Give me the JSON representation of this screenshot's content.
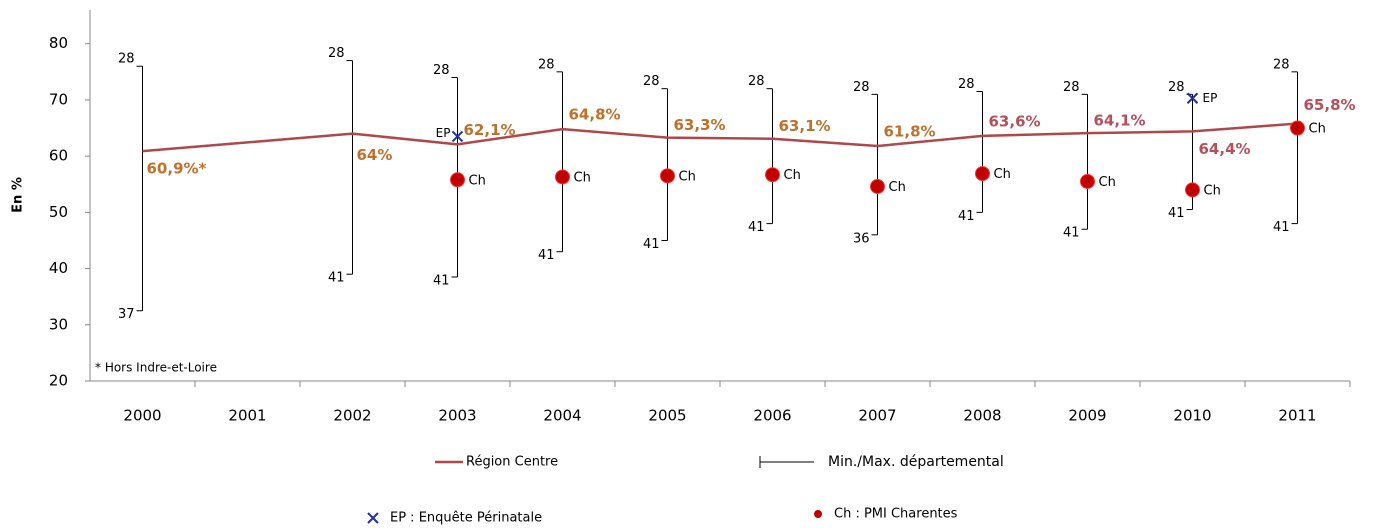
{
  "chart_data": {
    "type": "line",
    "y_label": "En %",
    "annotation": "* Hors Indre-et-Loire",
    "xlim": [
      1999.5,
      2011.5
    ],
    "xticks": [
      2000,
      2001,
      2002,
      2003,
      2004,
      2005,
      2006,
      2007,
      2008,
      2009,
      2010,
      2011
    ],
    "ylim": [
      20,
      86
    ],
    "yticks": [
      20,
      30,
      40,
      50,
      60,
      70,
      80
    ],
    "series": [
      {
        "name": "Région Centre",
        "color": "#b0474a",
        "x": [
          2000,
          2002,
          2003,
          2004,
          2005,
          2006,
          2007,
          2008,
          2009,
          2010,
          2011
        ],
        "values": [
          60.9,
          64,
          62.1,
          64.8,
          63.3,
          63.1,
          61.8,
          63.6,
          64.1,
          64.4,
          65.8
        ],
        "value_labels": [
          "60,9%*",
          "64%",
          "62,1%",
          "64,8%",
          "63,3%",
          "63,1%",
          "61,8%",
          "63,6%",
          "64,1%",
          "64,4%",
          "65,8%"
        ],
        "value_label_colors": [
          "#c0702a",
          "#c0702a",
          "#c0702a",
          "#c0702a",
          "#c0702a",
          "#c0702a",
          "#c0702a",
          "#b5505a",
          "#b5505a",
          "#b5505a",
          "#b5505a"
        ]
      }
    ],
    "ranges": {
      "name": "Min./Max. départemental",
      "color": "#000000",
      "x": [
        2000,
        2002,
        2003,
        2004,
        2005,
        2006,
        2007,
        2008,
        2009,
        2010,
        2011
      ],
      "max": [
        76,
        77,
        74,
        75,
        72,
        72,
        71,
        71.5,
        71,
        71,
        75
      ],
      "min": [
        32.5,
        39,
        38.5,
        43,
        45,
        48,
        46,
        50,
        47,
        50.5,
        48
      ],
      "max_labels": [
        "28",
        "28",
        "28",
        "28",
        "28",
        "28",
        "28",
        "28",
        "28",
        "28",
        "28"
      ],
      "min_labels": [
        "37",
        "41",
        "41",
        "41",
        "41",
        "41",
        "36",
        "41",
        "41",
        "41",
        "41"
      ]
    },
    "markers": [
      {
        "name": "EP : Enquête Périnatale",
        "symbol": "x",
        "color": "#1f2fa8",
        "label": "EP",
        "x": [
          2003,
          2010
        ],
        "values": [
          63.5,
          70.3
        ]
      },
      {
        "name": "Ch : PMI Charentes",
        "symbol": "circle",
        "color": "#c00000",
        "label": "Ch",
        "x": [
          2003,
          2004,
          2005,
          2006,
          2007,
          2008,
          2009,
          2010,
          2011
        ],
        "values": [
          55.8,
          56.3,
          56.5,
          56.7,
          54.6,
          56.9,
          55.5,
          54,
          65
        ]
      }
    ]
  }
}
